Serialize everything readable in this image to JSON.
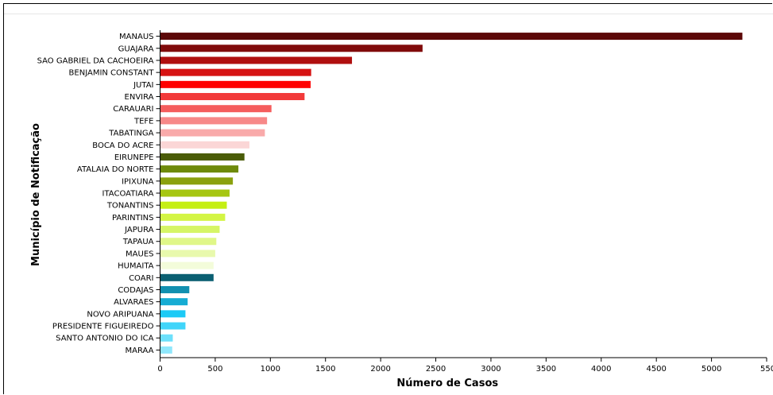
{
  "chart_data": {
    "type": "bar",
    "orientation": "horizontal",
    "xlabel": "Número de Casos",
    "ylabel": "Município de Notificação",
    "xlim": [
      0,
      5500
    ],
    "xticks": [
      0,
      500,
      1000,
      1500,
      2000,
      2500,
      3000,
      3500,
      4000,
      4500,
      5000,
      5500
    ],
    "grid": false,
    "categories": [
      "MANAUS",
      "GUAJARA",
      "SAO GABRIEL DA CACHOEIRA",
      "BENJAMIN CONSTANT",
      "JUTAI",
      "ENVIRA",
      "CARAUARI",
      "TEFE",
      "TABATINGA",
      "BOCA DO ACRE",
      "EIRUNEPE",
      "ATALAIA DO NORTE",
      "IPIXUNA",
      "ITACOATIARA",
      "TONANTINS",
      "PARINTINS",
      "JAPURA",
      "TAPAUA",
      "MAUES",
      "HUMAITA",
      "COARI",
      "CODAJAS",
      "ALVARAES",
      "NOVO ARIPUANA",
      "PRESIDENTE FIGUEIREDO",
      "SANTO ANTONIO DO ICA",
      "MARAA"
    ],
    "values": [
      5280,
      2380,
      1740,
      1370,
      1365,
      1310,
      1010,
      970,
      950,
      810,
      765,
      710,
      660,
      630,
      605,
      590,
      540,
      510,
      500,
      485,
      485,
      265,
      250,
      230,
      230,
      115,
      110
    ],
    "colors": [
      "#5c0808",
      "#800b0b",
      "#b00f0f",
      "#d61313",
      "#ff0000",
      "#f23a3a",
      "#f55d5d",
      "#f78888",
      "#f9aaaa",
      "#fbd6d6",
      "#4a5c08",
      "#6e8a0b",
      "#8ba10e",
      "#a6c612",
      "#c5ef14",
      "#d3f544",
      "#d6f565",
      "#e0f788",
      "#e8f9ad",
      "#f3fcda",
      "#0b5f72",
      "#1190b0",
      "#16acd3",
      "#1ccaf6",
      "#40d5fa",
      "#6de0fb",
      "#8fe7fc"
    ]
  }
}
